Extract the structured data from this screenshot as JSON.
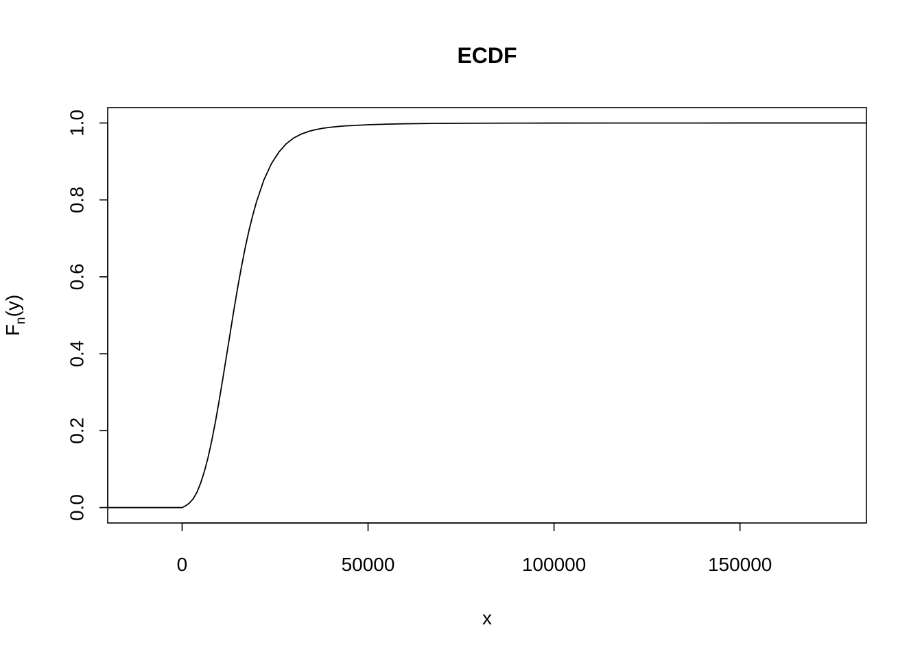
{
  "chart_data": {
    "type": "line",
    "title": "ECDF",
    "xlabel": "x",
    "ylabel": {
      "main": "F",
      "subscript": "n",
      "suffix": "(y)"
    },
    "xlim": [
      -20000,
      184000
    ],
    "ylim": [
      -0.04,
      1.04
    ],
    "x_ticks": [
      0,
      50000,
      100000,
      150000
    ],
    "x_tick_labels": [
      "0",
      "50000",
      "100000",
      "150000"
    ],
    "y_ticks": [
      0.0,
      0.2,
      0.4,
      0.6,
      0.8,
      1.0
    ],
    "y_tick_labels": [
      "0.0",
      "0.2",
      "0.4",
      "0.6",
      "0.8",
      "1.0"
    ],
    "grid": false,
    "series": [
      {
        "color": "#000000",
        "x": [
          -20000,
          0,
          1000,
          2000,
          3000,
          4000,
          5000,
          6000,
          7000,
          8000,
          9000,
          10000,
          11000,
          12000,
          13000,
          14000,
          15000,
          16000,
          17000,
          18000,
          19000,
          20000,
          22000,
          24000,
          26000,
          28000,
          30000,
          32000,
          34000,
          36000,
          38000,
          40000,
          42000,
          44000,
          46000,
          50000,
          55000,
          60000,
          65000,
          70000,
          80000,
          90000,
          100000,
          120000,
          150000,
          184000
        ],
        "y": [
          0.0,
          0.0,
          0.005,
          0.012,
          0.023,
          0.04,
          0.064,
          0.094,
          0.131,
          0.175,
          0.225,
          0.28,
          0.338,
          0.398,
          0.458,
          0.518,
          0.575,
          0.628,
          0.677,
          0.721,
          0.76,
          0.795,
          0.852,
          0.894,
          0.924,
          0.946,
          0.961,
          0.971,
          0.978,
          0.983,
          0.9865,
          0.989,
          0.991,
          0.9925,
          0.9935,
          0.9955,
          0.997,
          0.998,
          0.9987,
          0.9991,
          0.9995,
          0.9997,
          0.9998,
          0.9999,
          1.0,
          1.0
        ]
      }
    ]
  }
}
